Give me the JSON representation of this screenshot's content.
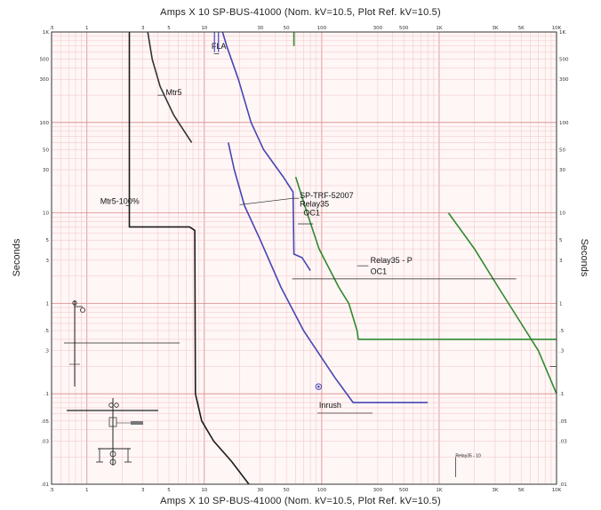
{
  "chart_data": {
    "type": "line",
    "title": "Amps  X  10    SP-BUS-41000  (Nom. kV=10.5,  Plot Ref. kV=10.5)",
    "xlabel": "Amps  X  10    SP-BUS-41000  (Nom. kV=10.5,  Plot Ref. kV=10.5)",
    "ylabel_left": "Seconds",
    "ylabel_right": "Seconds",
    "x_scale": "log",
    "y_scale": "log",
    "xlim": [
      0.5,
      10000
    ],
    "ylim": [
      0.01,
      1000
    ],
    "grid": true,
    "x_ticks": [
      {
        "v": 0.5,
        "t": ".5"
      },
      {
        "v": 1,
        "t": "1"
      },
      {
        "v": 3,
        "t": "3"
      },
      {
        "v": 5,
        "t": "5"
      },
      {
        "v": 10,
        "t": "10"
      },
      {
        "v": 30,
        "t": "30"
      },
      {
        "v": 50,
        "t": "50"
      },
      {
        "v": 100,
        "t": "100"
      },
      {
        "v": 300,
        "t": "300"
      },
      {
        "v": 500,
        "t": "500"
      },
      {
        "v": 1000,
        "t": "1K"
      },
      {
        "v": 3000,
        "t": "3K"
      },
      {
        "v": 5000,
        "t": "5K"
      },
      {
        "v": 10000,
        "t": "10K"
      }
    ],
    "y_ticks": [
      {
        "v": 1000,
        "t": "1K"
      },
      {
        "v": 500,
        "t": "500"
      },
      {
        "v": 300,
        "t": "300"
      },
      {
        "v": 100,
        "t": "100"
      },
      {
        "v": 50,
        "t": "50"
      },
      {
        "v": 30,
        "t": "30"
      },
      {
        "v": 10,
        "t": "10"
      },
      {
        "v": 5,
        "t": "5"
      },
      {
        "v": 3,
        "t": "3"
      },
      {
        "v": 1,
        "t": "1"
      },
      {
        "v": 0.5,
        "t": ".5"
      },
      {
        "v": 0.3,
        "t": ".3"
      },
      {
        "v": 0.1,
        "t": ".1"
      },
      {
        "v": 0.05,
        "t": ".05"
      },
      {
        "v": 0.03,
        "t": ".03"
      },
      {
        "v": 0.01,
        "t": ".01"
      }
    ],
    "series": [
      {
        "name": "Mtr5-100%",
        "color": "#1a1a1a",
        "points": [
          [
            2.3,
            1000
          ],
          [
            2.3,
            7
          ],
          [
            7.5,
            7
          ],
          [
            8.3,
            6.4
          ],
          [
            8.4,
            0.1
          ],
          [
            9.5,
            0.05
          ],
          [
            12,
            0.03
          ],
          [
            17,
            0.018
          ],
          [
            24,
            0.01
          ]
        ]
      },
      {
        "name": "Mtr5",
        "color": "#333333",
        "points": [
          [
            3.3,
            1000
          ],
          [
            3.6,
            500
          ],
          [
            4.2,
            250
          ],
          [
            5.5,
            120
          ],
          [
            7.8,
            60
          ]
        ]
      },
      {
        "name": "SP-TRF-52007",
        "color": "#4646b4",
        "points": [
          [
            14.3,
            1000
          ],
          [
            15.5,
            700
          ],
          [
            19.5,
            300
          ],
          [
            25,
            100
          ],
          [
            32,
            50
          ],
          [
            47,
            25
          ],
          [
            57,
            17
          ],
          [
            58,
            3.5
          ],
          [
            68,
            3.2
          ],
          [
            80,
            2.3
          ]
        ]
      },
      {
        "name": "",
        "color": "#4646b4",
        "points": [
          [
            16,
            60
          ],
          [
            18,
            30
          ],
          [
            22,
            12
          ],
          [
            30,
            5
          ],
          [
            45,
            1.5
          ],
          [
            70,
            0.5
          ],
          [
            130,
            0.15
          ],
          [
            185,
            0.08
          ],
          [
            800,
            0.08
          ]
        ]
      },
      {
        "name": "Relay35 - P OC1",
        "color": "#2f8a2f",
        "points": [
          [
            60,
            25
          ],
          [
            75,
            10
          ],
          [
            95,
            4
          ],
          [
            140,
            1.5
          ],
          [
            170,
            1
          ],
          [
            200,
            0.5
          ],
          [
            205,
            0.4
          ],
          [
            10000,
            0.4
          ]
        ]
      },
      {
        "name": "",
        "color": "#2f8a2f",
        "points": [
          [
            1200,
            10
          ],
          [
            2000,
            4
          ],
          [
            3200,
            1.5
          ],
          [
            5000,
            0.6
          ],
          [
            7000,
            0.3
          ],
          [
            10000,
            0.1
          ]
        ]
      },
      {
        "name": "",
        "color": "#2f8a2f",
        "points": [
          [
            58,
            1000
          ],
          [
            58,
            700
          ]
        ]
      }
    ],
    "annotations": [
      {
        "text": "FLA",
        "x": 11.5,
        "y": 650
      },
      {
        "text": "Mtr5",
        "x": 4.7,
        "y": 200
      },
      {
        "text": "Mtr5-100%",
        "x": 1.3,
        "y": 12.5
      },
      {
        "text": "SP-TRF-52007",
        "x": 65,
        "y": 14.5
      },
      {
        "text": "Relay35",
        "x": 65,
        "y": 11.8
      },
      {
        "text": "OC1",
        "x": 70,
        "y": 9.4
      },
      {
        "text": "Relay35 - P",
        "x": 260,
        "y": 2.8
      },
      {
        "text": "OC1",
        "x": 260,
        "y": 2.1
      },
      {
        "text": "Inrush",
        "x": 95,
        "y": 0.07
      },
      {
        "text": "Relay35 - 10",
        "x": 1380,
        "y": 0.02
      }
    ],
    "inrush_point": {
      "x": 94,
      "y": 0.12
    }
  },
  "labels": {
    "title_top": "Amps  X  10    SP-BUS-41000  (Nom. kV=10.5,  Plot Ref. kV=10.5)",
    "title_bottom": "Amps  X  10    SP-BUS-41000  (Nom. kV=10.5,  Plot Ref. kV=10.5)",
    "ylabel_left": "Seconds",
    "ylabel_right": "Seconds"
  }
}
